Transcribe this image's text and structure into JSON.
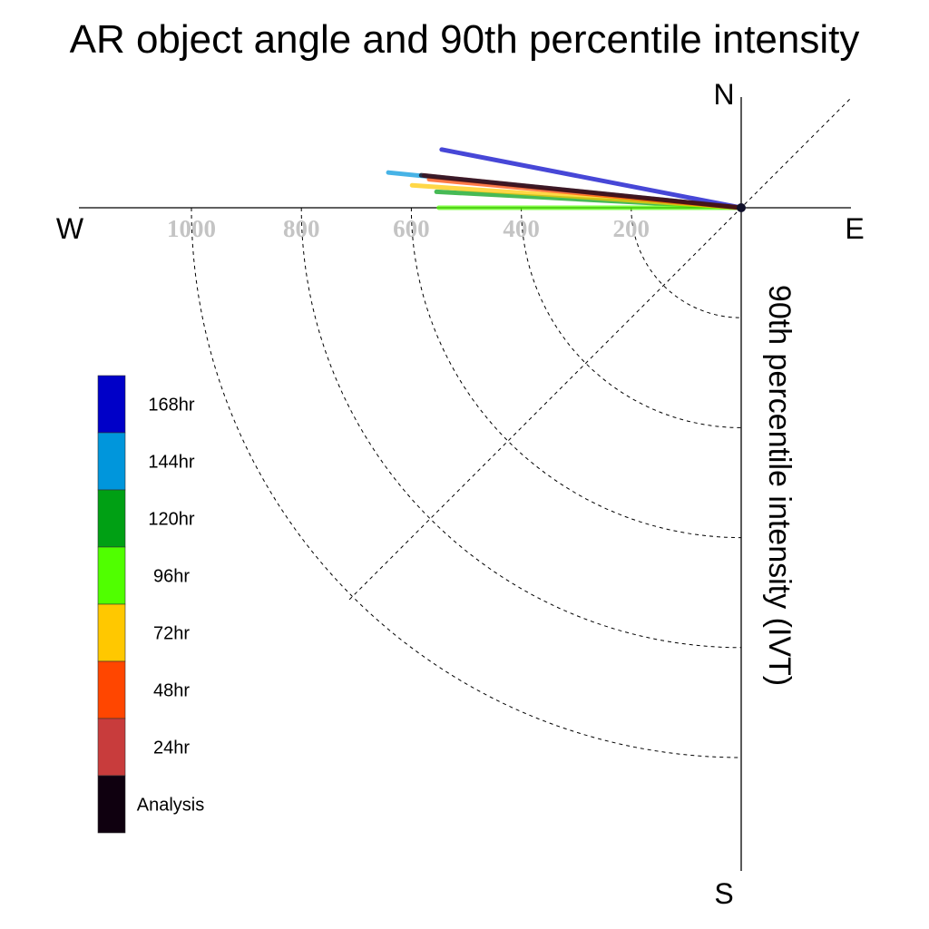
{
  "chart_data": {
    "type": "polar-vectors",
    "title": "AR object angle and 90th percentile intensity",
    "ylabel": "90th percentile intensity (IVT)",
    "compass": {
      "north": "N",
      "south": "S",
      "east": "E",
      "west": "W"
    },
    "radial_ticks": [
      200,
      400,
      600,
      800,
      1000
    ],
    "radial_tick_labels": [
      "200",
      "400",
      "600",
      "800",
      "1000"
    ],
    "rmax": 1200,
    "grid": true,
    "series": [
      {
        "name": "168hr",
        "color": "#0000c8",
        "angle_deg": 169.0,
        "magnitude": 555
      },
      {
        "name": "144hr",
        "color": "#0096dc",
        "angle_deg": 174.3,
        "magnitude": 645
      },
      {
        "name": "120hr",
        "color": "#00a014",
        "angle_deg": 177.0,
        "magnitude": 555
      },
      {
        "name": "96hr",
        "color": "#50ff00",
        "angle_deg": 180.0,
        "magnitude": 550
      },
      {
        "name": "72hr",
        "color": "#ffc800",
        "angle_deg": 176.1,
        "magnitude": 600
      },
      {
        "name": "48hr",
        "color": "#ff4600",
        "angle_deg": 174.8,
        "magnitude": 570
      },
      {
        "name": "24hr",
        "color": "#c83c3c",
        "angle_deg": 174.2,
        "magnitude": 580
      },
      {
        "name": "Analysis",
        "color": "#0f000f",
        "angle_deg": 174.2,
        "magnitude": 585
      }
    ],
    "legend": {
      "placement": "left",
      "entries": [
        "168hr",
        "144hr",
        "120hr",
        "96hr",
        "72hr",
        "48hr",
        "24hr",
        "Analysis"
      ]
    }
  }
}
